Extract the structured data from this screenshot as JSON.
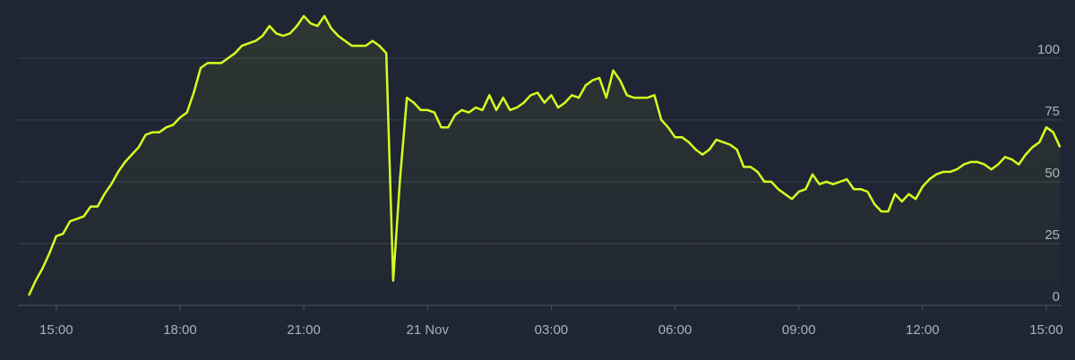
{
  "chart_data": {
    "type": "line",
    "x": [
      14.333,
      14.5,
      14.667,
      14.833,
      15,
      15.167,
      15.333,
      15.5,
      15.667,
      15.833,
      16,
      16.167,
      16.333,
      16.5,
      16.667,
      16.833,
      17,
      17.167,
      17.333,
      17.5,
      17.667,
      17.833,
      18,
      18.167,
      18.333,
      18.5,
      18.667,
      18.833,
      19,
      19.167,
      19.333,
      19.5,
      19.667,
      19.833,
      20,
      20.167,
      20.333,
      20.5,
      20.667,
      20.833,
      21,
      21.167,
      21.333,
      21.5,
      21.667,
      21.833,
      22,
      22.167,
      22.333,
      22.5,
      22.667,
      22.833,
      23,
      23.167,
      23.333,
      23.5,
      23.667,
      23.833,
      24,
      24.167,
      24.333,
      24.5,
      24.667,
      24.833,
      25,
      25.167,
      25.333,
      25.5,
      25.667,
      25.833,
      26,
      26.167,
      26.333,
      26.5,
      26.667,
      26.833,
      27,
      27.167,
      27.333,
      27.5,
      27.667,
      27.833,
      28,
      28.167,
      28.333,
      28.5,
      28.667,
      28.833,
      29,
      29.167,
      29.333,
      29.5,
      29.667,
      29.833,
      30,
      30.167,
      30.333,
      30.5,
      30.667,
      30.833,
      31,
      31.167,
      31.333,
      31.5,
      31.667,
      31.833,
      32,
      32.167,
      32.333,
      32.5,
      32.667,
      32.833,
      33,
      33.167,
      33.333,
      33.5,
      33.667,
      33.833,
      34,
      34.167,
      34.333,
      34.5,
      34.667,
      34.833,
      35,
      35.167,
      35.333,
      35.5,
      35.667,
      35.833,
      36,
      36.167,
      36.333,
      36.5,
      36.667,
      36.833,
      37,
      37.167,
      37.333,
      37.5,
      37.667,
      37.833,
      38,
      38.167,
      38.333,
      38.5,
      38.667,
      38.833,
      39,
      39.167,
      39.333
    ],
    "series": [
      {
        "color": "#d4ff1f",
        "values": [
          4,
          10,
          15,
          21,
          28,
          29,
          34,
          35,
          36,
          40,
          40,
          45,
          49,
          54,
          58,
          61,
          64,
          69,
          70,
          70,
          72,
          73,
          76,
          78,
          86,
          96,
          98,
          98,
          98,
          100,
          102,
          105,
          106,
          107,
          109,
          113,
          110,
          109,
          110,
          113,
          117,
          114,
          113,
          117,
          112,
          109,
          107,
          105,
          105,
          105,
          107,
          105,
          102,
          10,
          51,
          84,
          82,
          79,
          79,
          78,
          72,
          72,
          77,
          79,
          78,
          80,
          79,
          85,
          79,
          84,
          79,
          80,
          82,
          85,
          86,
          82,
          85,
          80,
          82,
          85,
          84,
          89,
          91,
          92,
          84,
          95,
          91,
          85,
          84,
          84,
          84,
          85,
          75,
          72,
          68,
          68,
          66,
          63,
          61,
          63,
          67,
          66,
          65,
          63,
          56,
          56,
          54,
          50,
          50,
          47,
          45,
          43,
          46,
          47,
          53,
          49,
          50,
          49,
          50,
          51,
          47,
          47,
          46,
          41,
          38,
          38,
          45,
          42,
          45,
          43,
          48,
          51,
          53,
          54,
          54,
          55,
          57,
          58,
          58,
          57,
          55,
          57,
          60,
          59,
          57,
          61,
          64,
          66,
          72,
          70,
          64
        ]
      }
    ],
    "xlim": [
      14.07,
      39.37
    ],
    "xticks": [
      {
        "value": 15,
        "label": "15:00"
      },
      {
        "value": 18,
        "label": "18:00"
      },
      {
        "value": 21,
        "label": "21:00"
      },
      {
        "value": 24,
        "label": "21 Nov"
      },
      {
        "value": 27,
        "label": "03:00"
      },
      {
        "value": 30,
        "label": "06:00"
      },
      {
        "value": 33,
        "label": "09:00"
      },
      {
        "value": 36,
        "label": "12:00"
      },
      {
        "value": 39,
        "label": "15:00"
      }
    ],
    "ylim": [
      0,
      123.5
    ],
    "yticks": [
      0,
      25,
      50,
      75,
      100
    ],
    "grid": true
  }
}
